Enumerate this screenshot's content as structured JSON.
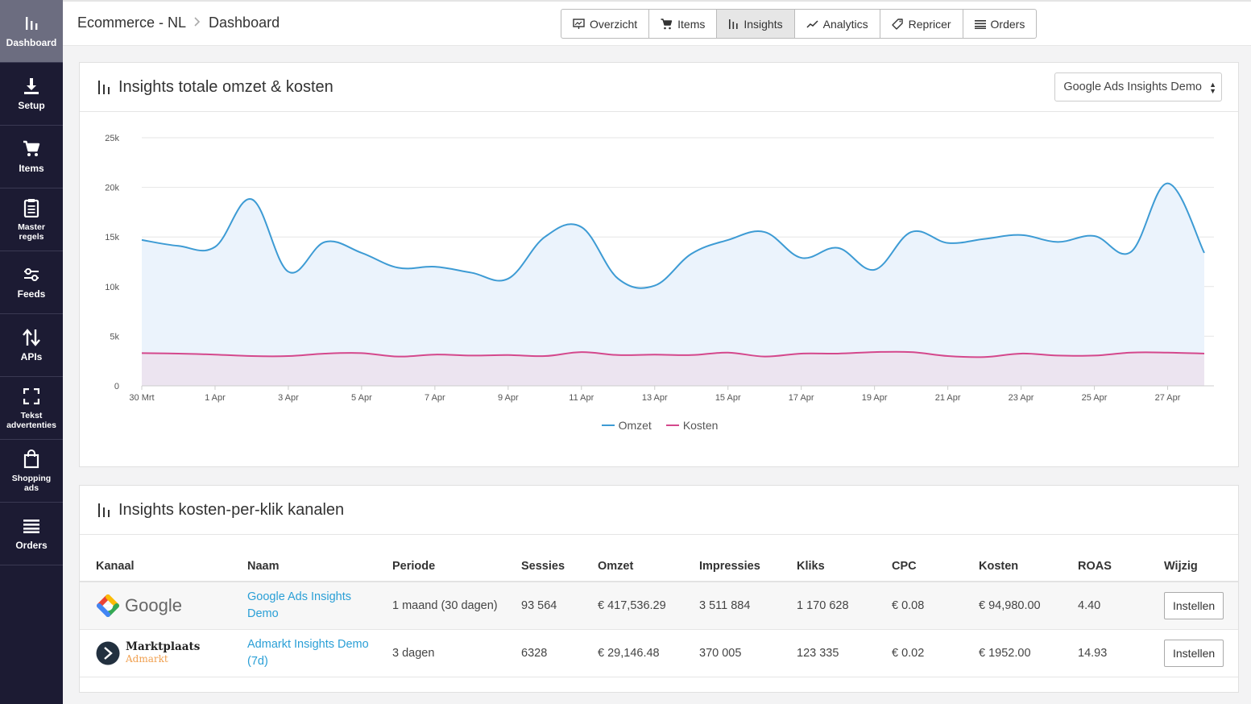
{
  "sidebar": {
    "items": [
      {
        "label": "Dashboard",
        "icon": "bar-chart-icon"
      },
      {
        "label": "Setup",
        "icon": "download-icon"
      },
      {
        "label": "Items",
        "icon": "cart-icon"
      },
      {
        "label": "Master regels",
        "icon": "clipboard-icon"
      },
      {
        "label": "Feeds",
        "icon": "sliders-icon"
      },
      {
        "label": "APIs",
        "icon": "swap-vertical-icon"
      },
      {
        "label": "Tekst advertenties",
        "icon": "expand-icon"
      },
      {
        "label": "Shopping ads",
        "icon": "shopping-bag-icon"
      },
      {
        "label": "Orders",
        "icon": "list-icon"
      }
    ]
  },
  "header": {
    "breadcrumb": [
      "Ecommerce - NL",
      "Dashboard"
    ],
    "tabs": [
      {
        "label": "Overzicht",
        "icon": "presentation-icon"
      },
      {
        "label": "Items",
        "icon": "cart-icon"
      },
      {
        "label": "Insights",
        "icon": "bar-chart-icon",
        "active": true
      },
      {
        "label": "Analytics",
        "icon": "trend-line-icon"
      },
      {
        "label": "Repricer",
        "icon": "tag-icon"
      },
      {
        "label": "Orders",
        "icon": "list-icon"
      }
    ]
  },
  "revenue_panel": {
    "title": "Insights totale omzet & kosten",
    "select_value": "Google Ads Insights Demo"
  },
  "chart_data": {
    "type": "area",
    "x": [
      "30 Mrt",
      "31 Mrt",
      "1 Apr",
      "2 Apr",
      "3 Apr",
      "4 Apr",
      "5 Apr",
      "6 Apr",
      "7 Apr",
      "8 Apr",
      "9 Apr",
      "10 Apr",
      "11 Apr",
      "12 Apr",
      "13 Apr",
      "14 Apr",
      "15 Apr",
      "16 Apr",
      "17 Apr",
      "18 Apr",
      "19 Apr",
      "20 Apr",
      "21 Apr",
      "22 Apr",
      "23 Apr",
      "24 Apr",
      "25 Apr",
      "26 Apr",
      "27 Apr",
      "28 Apr"
    ],
    "tick_labels": [
      "30 Mrt",
      "1 Apr",
      "3 Apr",
      "5 Apr",
      "7 Apr",
      "9 Apr",
      "11 Apr",
      "13 Apr",
      "15 Apr",
      "17 Apr",
      "19 Apr",
      "21 Apr",
      "23 Apr",
      "25 Apr",
      "27 Apr"
    ],
    "y_ticks": [
      "0",
      "5k",
      "10k",
      "15k",
      "20k",
      "25k"
    ],
    "ylim": [
      0,
      25000
    ],
    "grid": true,
    "legend_position": "bottom-center",
    "series": [
      {
        "name": "Omzet",
        "color": "#3d9bd4",
        "fill": "#ebf3fc",
        "values": [
          14700,
          14100,
          14000,
          18800,
          11500,
          14500,
          13400,
          11900,
          12000,
          11400,
          10800,
          15000,
          16000,
          10800,
          10100,
          13300,
          14700,
          15500,
          12900,
          13900,
          11700,
          15500,
          14400,
          14800,
          15200,
          14500,
          15100,
          13500,
          20400,
          13400
        ]
      },
      {
        "name": "Kosten",
        "color": "#d4488c",
        "fill": "#ece4f0",
        "values": [
          3300,
          3250,
          3150,
          3000,
          3000,
          3250,
          3300,
          2950,
          3150,
          3050,
          3100,
          3000,
          3400,
          3100,
          3150,
          3100,
          3350,
          2950,
          3250,
          3250,
          3400,
          3400,
          3000,
          2900,
          3250,
          3050,
          3050,
          3350,
          3350,
          3250
        ]
      }
    ]
  },
  "channels_panel": {
    "title": "Insights kosten-per-klik kanalen",
    "columns": [
      "Kanaal",
      "Naam",
      "Periode",
      "Sessies",
      "Omzet",
      "Impressies",
      "Kliks",
      "CPC",
      "Kosten",
      "ROAS",
      "Wijzig"
    ],
    "rows": [
      {
        "kanaal": "Google",
        "naam": "Google Ads Insights Demo",
        "periode": "1 maand (30 dagen)",
        "sessies": "93 564",
        "omzet": "€ 417,536.29",
        "impressies": "3 511 884",
        "kliks": "1 170 628",
        "cpc": "€ 0.08",
        "kosten": "€ 94,980.00",
        "roas": "4.40",
        "button": "Instellen"
      },
      {
        "kanaal": "Marktplaats",
        "kanaal_sub": "Admarkt",
        "naam": "Admarkt Insights Demo (7d)",
        "periode": "3 dagen",
        "sessies": "6328",
        "omzet": "€ 29,146.48",
        "impressies": "370 005",
        "kliks": "123 335",
        "cpc": "€ 0.02",
        "kosten": "€ 1952.00",
        "roas": "14.93",
        "button": "Instellen"
      }
    ]
  }
}
